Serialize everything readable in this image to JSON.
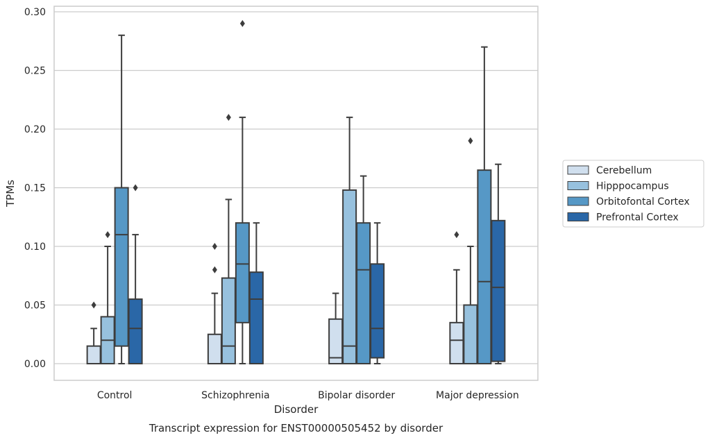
{
  "chart_data": {
    "type": "box",
    "title": "",
    "caption": "Transcript expression for ENST00000505452 by disorder",
    "xlabel": "Disorder",
    "ylabel": "TPMs",
    "ylim": [
      -0.014,
      0.305
    ],
    "yticks": [
      0.0,
      0.05,
      0.1,
      0.15,
      0.2,
      0.25,
      0.3
    ],
    "ytick_labels": [
      "0.00",
      "0.05",
      "0.10",
      "0.15",
      "0.20",
      "0.25",
      "0.30"
    ],
    "grid": "horizontal",
    "legend_position": "right",
    "categories": [
      "Control",
      "Schizophrenia",
      "Bipolar disorder",
      "Major depression"
    ],
    "series": [
      {
        "name": "Cerebellum",
        "color": "#d0dfee",
        "boxes": [
          {
            "whislo": 0.0,
            "q1": 0.0,
            "med": 0.0,
            "q3": 0.015,
            "whishi": 0.03,
            "fliers": [
              0.05
            ]
          },
          {
            "whislo": 0.0,
            "q1": 0.0,
            "med": 0.0,
            "q3": 0.025,
            "whishi": 0.06,
            "fliers": [
              0.08,
              0.1
            ]
          },
          {
            "whislo": 0.0,
            "q1": 0.0,
            "med": 0.005,
            "q3": 0.038,
            "whishi": 0.06,
            "fliers": []
          },
          {
            "whislo": 0.0,
            "q1": 0.0,
            "med": 0.02,
            "q3": 0.035,
            "whishi": 0.08,
            "fliers": [
              0.11
            ]
          }
        ]
      },
      {
        "name": "Hipppocampus",
        "color": "#97c1de",
        "boxes": [
          {
            "whislo": 0.0,
            "q1": 0.0,
            "med": 0.02,
            "q3": 0.04,
            "whishi": 0.1,
            "fliers": [
              0.11
            ]
          },
          {
            "whislo": 0.0,
            "q1": 0.0,
            "med": 0.015,
            "q3": 0.073,
            "whishi": 0.14,
            "fliers": [
              0.21
            ]
          },
          {
            "whislo": 0.0,
            "q1": 0.0,
            "med": 0.015,
            "q3": 0.148,
            "whishi": 0.21,
            "fliers": []
          },
          {
            "whislo": 0.0,
            "q1": 0.0,
            "med": 0.0,
            "q3": 0.05,
            "whishi": 0.1,
            "fliers": [
              0.19
            ]
          }
        ]
      },
      {
        "name": "Orbitofontal Cortex",
        "color": "#5698c6",
        "boxes": [
          {
            "whislo": 0.0,
            "q1": 0.015,
            "med": 0.11,
            "q3": 0.15,
            "whishi": 0.28,
            "fliers": []
          },
          {
            "whislo": 0.0,
            "q1": 0.035,
            "med": 0.085,
            "q3": 0.12,
            "whishi": 0.21,
            "fliers": [
              0.29
            ]
          },
          {
            "whislo": 0.0,
            "q1": 0.0,
            "med": 0.08,
            "q3": 0.12,
            "whishi": 0.16,
            "fliers": []
          },
          {
            "whislo": 0.0,
            "q1": 0.0,
            "med": 0.07,
            "q3": 0.165,
            "whishi": 0.27,
            "fliers": []
          }
        ]
      },
      {
        "name": "Prefrontal Cortex",
        "color": "#2a67a7",
        "boxes": [
          {
            "whislo": 0.0,
            "q1": 0.0,
            "med": 0.03,
            "q3": 0.055,
            "whishi": 0.11,
            "fliers": [
              0.15
            ]
          },
          {
            "whislo": 0.0,
            "q1": 0.0,
            "med": 0.055,
            "q3": 0.078,
            "whishi": 0.12,
            "fliers": []
          },
          {
            "whislo": 0.0,
            "q1": 0.005,
            "med": 0.03,
            "q3": 0.085,
            "whishi": 0.12,
            "fliers": []
          },
          {
            "whislo": 0.0,
            "q1": 0.002,
            "med": 0.065,
            "q3": 0.122,
            "whishi": 0.17,
            "fliers": []
          }
        ]
      }
    ]
  }
}
